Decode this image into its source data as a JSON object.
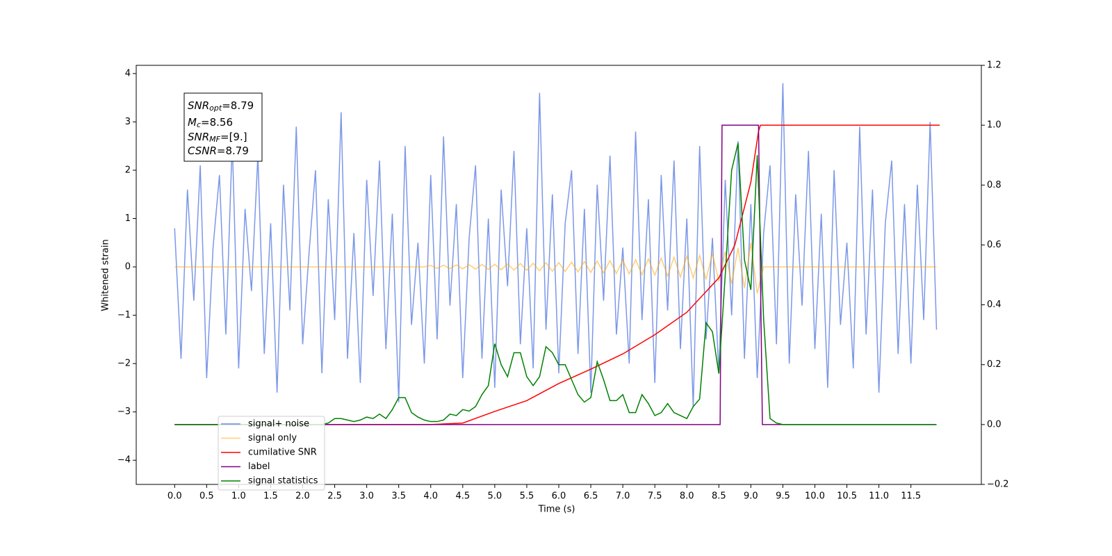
{
  "chart_data": {
    "type": "line",
    "xlabel": "Time (s)",
    "ylabel": "Whitened strain",
    "xlim": [
      -0.6,
      12.6
    ],
    "ylim": [
      -4.5,
      4.17
    ],
    "y2lim": [
      -0.2,
      1.2
    ],
    "xticks": [
      {
        "value": 0,
        "label": "0.0"
      },
      {
        "value": 0.5,
        "label": "0.5"
      },
      {
        "value": 1,
        "label": "1.0"
      },
      {
        "value": 1.5,
        "label": "1.5"
      },
      {
        "value": 2,
        "label": "2.0"
      },
      {
        "value": 2.5,
        "label": "2.5"
      },
      {
        "value": 3,
        "label": "3.0"
      },
      {
        "value": 3.5,
        "label": "3.5"
      },
      {
        "value": 4,
        "label": "4.0"
      },
      {
        "value": 4.5,
        "label": "4.5"
      },
      {
        "value": 5,
        "label": "5.0"
      },
      {
        "value": 5.5,
        "label": "5.5"
      },
      {
        "value": 6,
        "label": "6.0"
      },
      {
        "value": 6.5,
        "label": "6.5"
      },
      {
        "value": 7,
        "label": "7.0"
      },
      {
        "value": 7.5,
        "label": "7.5"
      },
      {
        "value": 8,
        "label": "8.0"
      },
      {
        "value": 8.5,
        "label": "8.5"
      },
      {
        "value": 9,
        "label": "9.0"
      },
      {
        "value": 9.5,
        "label": "9.5"
      },
      {
        "value": 10,
        "label": "10.0"
      },
      {
        "value": 10.5,
        "label": "10.5"
      },
      {
        "value": 11,
        "label": "11.0"
      },
      {
        "value": 11.5,
        "label": "11.5"
      }
    ],
    "yticks": [
      {
        "value": -4,
        "label": "−4"
      },
      {
        "value": -3,
        "label": "−3"
      },
      {
        "value": -2,
        "label": "−2"
      },
      {
        "value": -1,
        "label": "−1"
      },
      0,
      1,
      2,
      3,
      4
    ],
    "y2ticks": [
      {
        "value": -0.2,
        "label": "−0.2"
      },
      {
        "value": 0,
        "label": "0.0"
      },
      {
        "value": 0.2,
        "label": "0.2"
      },
      {
        "value": 0.4,
        "label": "0.4"
      },
      {
        "value": 0.6,
        "label": "0.6"
      },
      {
        "value": 0.8,
        "label": "0.8"
      },
      {
        "value": 1,
        "label": "1.0"
      },
      {
        "value": 1.2,
        "label": "1.2"
      }
    ],
    "annotations": [
      {
        "base": "SNR",
        "sub": "opt",
        "text": "=8.79"
      },
      {
        "base": "M",
        "sub": "c",
        "text": "=8.56"
      },
      {
        "base": "SNR",
        "sub": "MF",
        "text": "=[9.]"
      },
      {
        "base": "CSNR",
        "text": "=8.79"
      }
    ],
    "x": [
      0,
      0.1,
      0.2,
      0.3,
      0.4,
      0.5,
      0.6,
      0.7,
      0.8,
      0.9,
      1,
      1.1,
      1.2,
      1.3,
      1.4,
      1.5,
      1.6,
      1.7,
      1.8,
      1.9,
      2,
      2.1,
      2.2,
      2.3,
      2.4,
      2.5,
      2.6,
      2.7,
      2.8,
      2.9,
      3,
      3.1,
      3.2,
      3.3,
      3.4,
      3.5,
      3.6,
      3.7,
      3.8,
      3.9,
      4,
      4.1,
      4.2,
      4.3,
      4.4,
      4.5,
      4.6,
      4.7,
      4.8,
      4.9,
      5,
      5.1,
      5.2,
      5.3,
      5.4,
      5.5,
      5.6,
      5.7,
      5.8,
      5.9,
      6,
      6.1,
      6.2,
      6.3,
      6.4,
      6.5,
      6.6,
      6.7,
      6.8,
      6.9,
      7,
      7.1,
      7.2,
      7.3,
      7.4,
      7.5,
      7.6,
      7.7,
      7.8,
      7.9,
      8,
      8.1,
      8.2,
      8.3,
      8.4,
      8.5,
      8.6,
      8.7,
      8.8,
      8.9,
      9,
      9.1,
      9.2,
      9.3,
      9.4,
      9.5,
      9.6,
      9.7,
      9.8,
      9.9,
      10,
      10.1,
      10.2,
      10.3,
      10.4,
      10.5,
      10.6,
      10.7,
      10.8,
      10.9,
      11,
      11.1,
      11.2,
      11.3,
      11.4,
      11.5,
      11.6,
      11.7,
      11.8,
      11.9
    ],
    "series": [
      {
        "name": "signal+ noise",
        "color": "#6d8ce6",
        "values": [
          0.8,
          -1.9,
          1.6,
          -0.7,
          2.1,
          -2.3,
          0.4,
          1.9,
          -1.4,
          2.6,
          -2.1,
          1.2,
          -0.5,
          2.3,
          -1.8,
          0.9,
          -2.6,
          1.7,
          -0.9,
          2.9,
          -1.6,
          0.3,
          2.0,
          -2.2,
          1.4,
          -1.1,
          3.2,
          -1.9,
          0.7,
          -2.4,
          1.8,
          -0.6,
          2.2,
          -1.7,
          1.1,
          -2.8,
          2.5,
          -1.2,
          0.5,
          -2.0,
          1.9,
          -1.5,
          2.7,
          -0.8,
          1.3,
          -2.3,
          0.6,
          2.1,
          -1.9,
          1.0,
          -2.5,
          1.6,
          -0.4,
          2.4,
          -1.6,
          0.8,
          -2.1,
          3.6,
          -1.3,
          1.5,
          -2.2,
          0.9,
          2.0,
          -1.8,
          1.2,
          -2.6,
          1.7,
          -0.7,
          2.3,
          -1.4,
          0.4,
          -2.0,
          2.8,
          -1.1,
          1.4,
          -2.4,
          1.9,
          -0.9,
          2.2,
          -1.7,
          1.0,
          -2.9,
          2.5,
          -1.5,
          0.6,
          -2.2,
          1.8,
          -1.0,
          2.6,
          -1.9,
          1.3,
          -2.3,
          0.7,
          2.1,
          -1.6,
          3.8,
          -2.0,
          1.5,
          -0.8,
          2.4,
          -1.7,
          1.1,
          -2.5,
          2.0,
          -1.2,
          0.5,
          -2.1,
          2.9,
          -1.4,
          1.6,
          -2.6,
          0.9,
          2.2,
          -1.8,
          1.3,
          -2.0,
          1.7,
          -1.1,
          3.0,
          -1.3
        ]
      },
      {
        "name": "signal only",
        "color": "#ffa500",
        "values": [
          0,
          0,
          0,
          0,
          0,
          0,
          0,
          0,
          0,
          0,
          0,
          0,
          0,
          0,
          0,
          0,
          0,
          0,
          0,
          0,
          0,
          0,
          0,
          0,
          0,
          0,
          0,
          0,
          0,
          0,
          0,
          0,
          0,
          0,
          0,
          0,
          0,
          0,
          0,
          0,
          0.03,
          -0.03,
          0.035,
          -0.035,
          0.04,
          -0.04,
          0.045,
          -0.045,
          0.05,
          -0.05,
          0.055,
          -0.06,
          0.06,
          -0.065,
          0.07,
          -0.07,
          0.075,
          -0.08,
          0.085,
          -0.09,
          0.09,
          -0.095,
          0.1,
          -0.105,
          0.11,
          -0.115,
          0.12,
          -0.125,
          0.13,
          -0.135,
          0.14,
          -0.145,
          0.15,
          -0.16,
          0.165,
          -0.17,
          0.18,
          -0.19,
          0.2,
          -0.21,
          0.22,
          -0.23,
          0.24,
          -0.26,
          0.28,
          -0.3,
          0.32,
          -0.35,
          0.39,
          -0.44,
          0.5,
          -0.55,
          0,
          0,
          0,
          0,
          0,
          0,
          0,
          0,
          0,
          0,
          0,
          0,
          0,
          0,
          0,
          0,
          0,
          0,
          0,
          0,
          0,
          0,
          0,
          0,
          0,
          0,
          0,
          0
        ]
      },
      {
        "name": "cumilative SNR",
        "color": "#ff0000",
        "axis": "y2",
        "x": [
          0,
          4,
          4.5,
          5,
          5.5,
          6,
          6.5,
          7,
          7.5,
          8,
          8.5,
          8.75,
          9,
          9.12,
          9.15,
          11.95
        ],
        "values": [
          0,
          0,
          0.005,
          0.044,
          0.08,
          0.137,
          0.185,
          0.236,
          0.3,
          0.375,
          0.49,
          0.6,
          0.81,
          0.98,
          1,
          1
        ]
      },
      {
        "name": "label",
        "color": "#800080",
        "axis": "y2",
        "x": [
          0,
          8.52,
          8.55,
          9.12,
          9.18,
          11.9
        ],
        "values": [
          0,
          0,
          1,
          1,
          0,
          0
        ]
      },
      {
        "name": "signal statistics",
        "color": "#008000",
        "axis": "y2",
        "x": [
          0,
          2.3,
          2.4,
          2.5,
          2.6,
          2.7,
          2.8,
          2.9,
          3,
          3.1,
          3.2,
          3.3,
          3.4,
          3.5,
          3.6,
          3.7,
          3.8,
          3.9,
          4,
          4.1,
          4.2,
          4.3,
          4.4,
          4.5,
          4.6,
          4.7,
          4.8,
          4.9,
          5,
          5.1,
          5.2,
          5.3,
          5.4,
          5.5,
          5.6,
          5.7,
          5.8,
          5.9,
          6,
          6.1,
          6.2,
          6.3,
          6.4,
          6.5,
          6.6,
          6.7,
          6.8,
          6.9,
          7,
          7.1,
          7.2,
          7.3,
          7.4,
          7.5,
          7.6,
          7.7,
          7.8,
          7.9,
          8,
          8.1,
          8.2,
          8.3,
          8.4,
          8.5,
          8.6,
          8.7,
          8.8,
          8.9,
          9,
          9.1,
          9.2,
          9.3,
          9.4,
          9.5,
          11.9
        ],
        "values": [
          0,
          0,
          0.005,
          0.02,
          0.02,
          0.015,
          0.01,
          0.015,
          0.025,
          0.02,
          0.035,
          0.02,
          0.05,
          0.09,
          0.09,
          0.04,
          0.025,
          0.015,
          0.01,
          0.01,
          0.015,
          0.035,
          0.03,
          0.05,
          0.045,
          0.06,
          0.1,
          0.13,
          0.27,
          0.2,
          0.16,
          0.24,
          0.24,
          0.16,
          0.13,
          0.16,
          0.26,
          0.24,
          0.2,
          0.2,
          0.15,
          0.1,
          0.075,
          0.09,
          0.21,
          0.15,
          0.08,
          0.08,
          0.1,
          0.04,
          0.04,
          0.1,
          0.07,
          0.03,
          0.04,
          0.07,
          0.04,
          0.03,
          0.02,
          0.06,
          0.085,
          0.34,
          0.31,
          0.17,
          0.5,
          0.85,
          0.94,
          0.55,
          0.45,
          0.9,
          0.35,
          0.02,
          0.005,
          0,
          0
        ]
      }
    ]
  }
}
